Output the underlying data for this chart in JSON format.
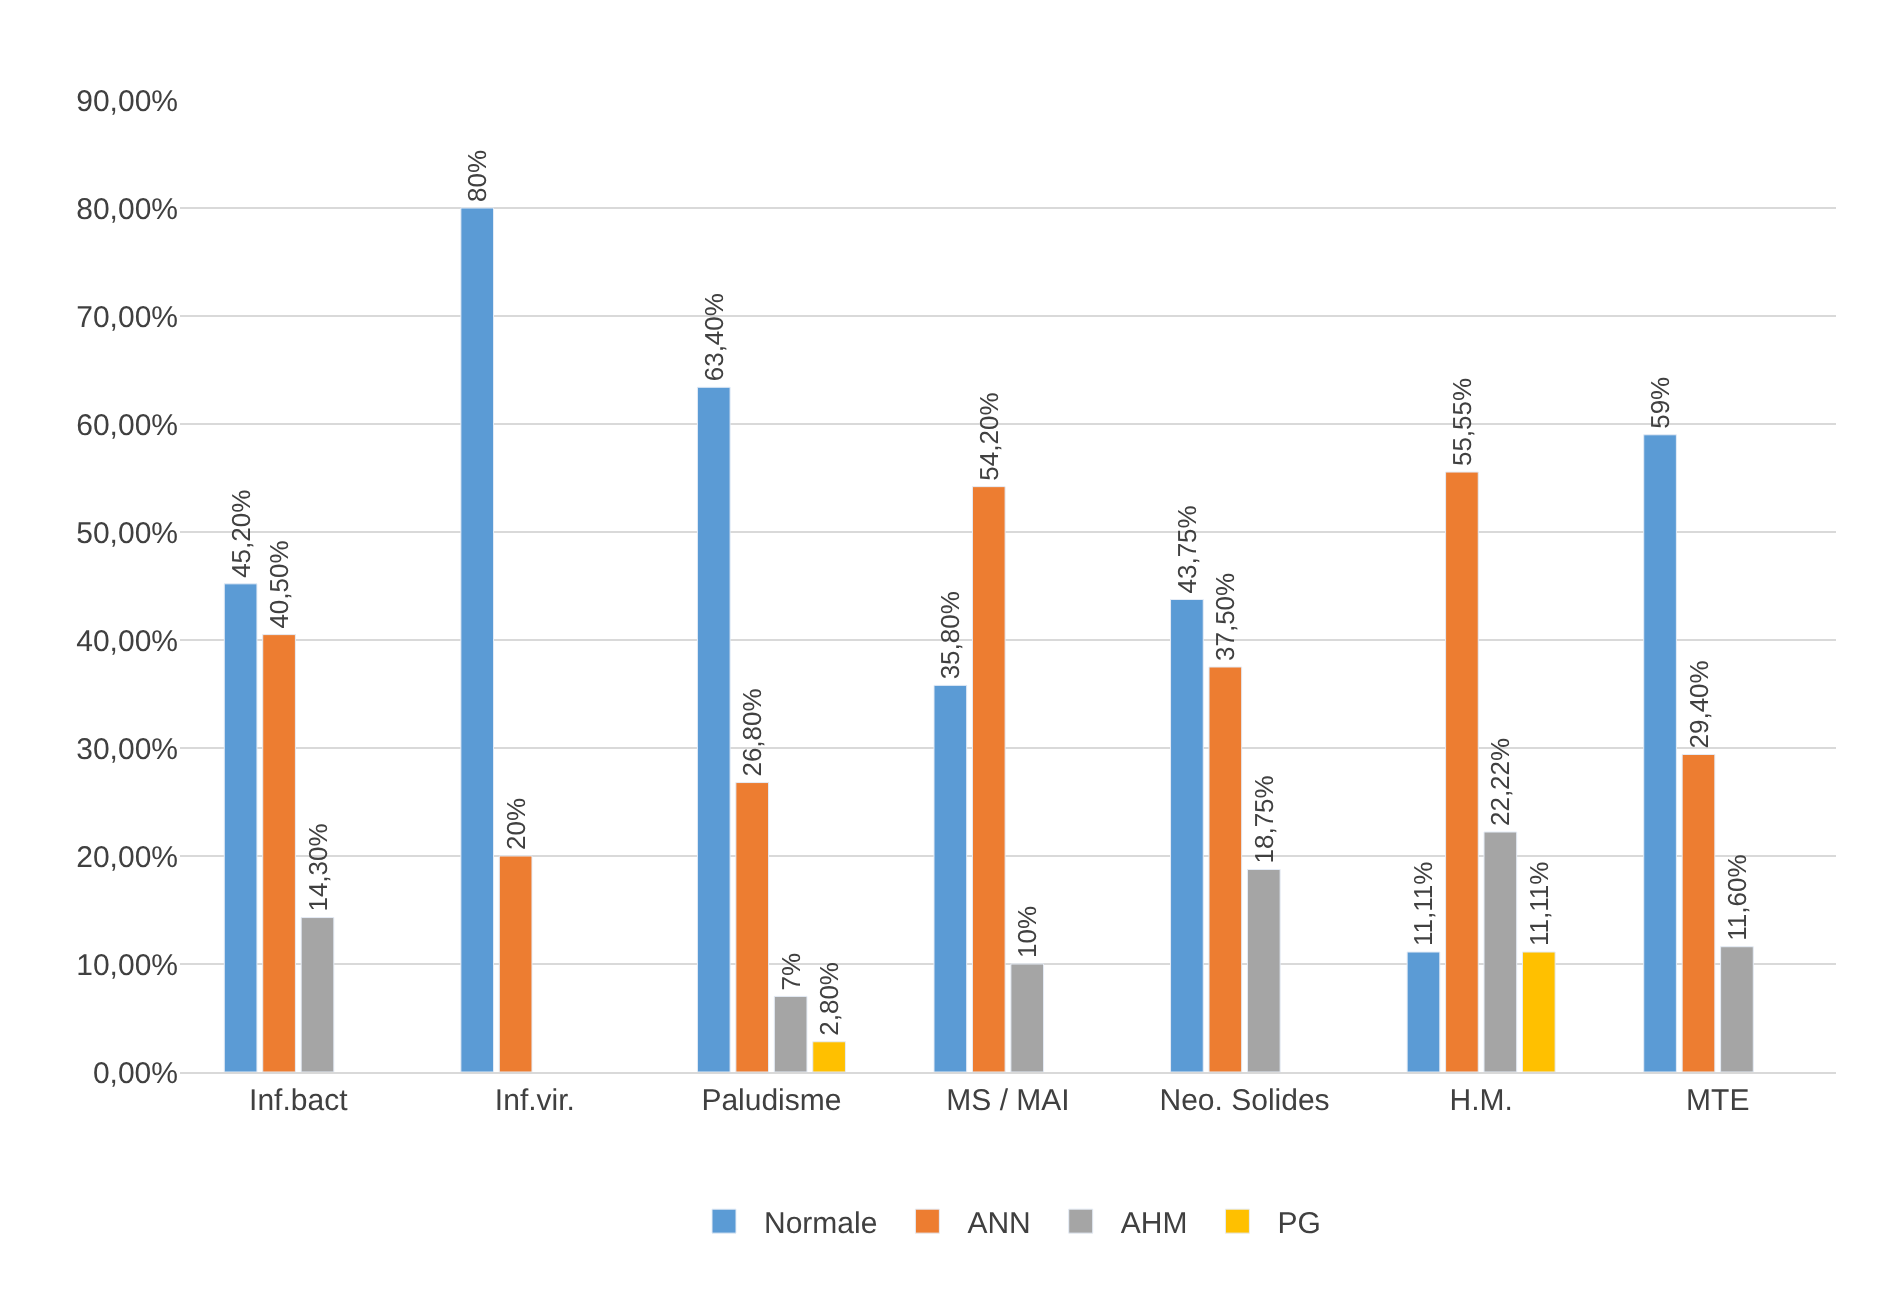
{
  "chart_data": {
    "type": "bar",
    "categories": [
      "Inf.bact",
      "Inf.vir.",
      "Paludisme",
      "MS / MAI",
      "Neo. Solides",
      "H.M.",
      "MTE"
    ],
    "series": [
      {
        "name": "Normale",
        "color": "#5b9bd5",
        "values": [
          45.2,
          80,
          63.4,
          35.8,
          43.75,
          11.11,
          59
        ],
        "value_labels": [
          "45,20%",
          "80%",
          "63,40%",
          "35,80%",
          "43,75%",
          "11,11%",
          "59%"
        ]
      },
      {
        "name": "ANN",
        "color": "#ed7d31",
        "values": [
          40.5,
          20,
          26.8,
          54.2,
          37.5,
          55.55,
          29.4
        ],
        "value_labels": [
          "40,50%",
          "20%",
          "26,80%",
          "54,20%",
          "37,50%",
          "55,55%",
          "29,40%"
        ]
      },
      {
        "name": "AHM",
        "color": "#a5a5a5",
        "values": [
          14.3,
          null,
          7,
          10,
          18.75,
          22.22,
          11.6
        ],
        "value_labels": [
          "14,30%",
          null,
          "7%",
          "10%",
          "18,75%",
          "22,22%",
          "11,60%"
        ]
      },
      {
        "name": "PG",
        "color": "#ffc000",
        "values": [
          null,
          null,
          2.8,
          null,
          null,
          11.11,
          null
        ],
        "value_labels": [
          null,
          null,
          "2,80%",
          null,
          null,
          "11,11%",
          null
        ]
      }
    ],
    "ylim": [
      0,
      90
    ],
    "yticks": [
      {
        "value": 0,
        "label": "0,00%"
      },
      {
        "value": 10,
        "label": "10,00%"
      },
      {
        "value": 20,
        "label": "20,00%"
      },
      {
        "value": 30,
        "label": "30,00%"
      },
      {
        "value": 40,
        "label": "40,00%"
      },
      {
        "value": 50,
        "label": "50,00%"
      },
      {
        "value": 60,
        "label": "60,00%"
      },
      {
        "value": 70,
        "label": "70,00%"
      },
      {
        "value": 80,
        "label": "80,00%"
      },
      {
        "value": 90,
        "label": "90,00%"
      }
    ],
    "grid": "y",
    "legend": "bottom"
  }
}
